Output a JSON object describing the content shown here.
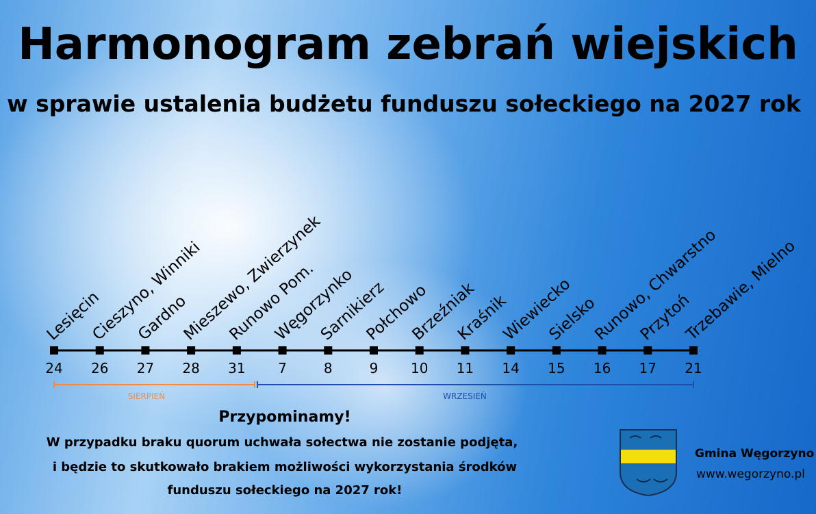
{
  "header": {
    "title": "Harmonogram zebrań wiejskich",
    "subtitle": "w sprawie ustalenia budżetu funduszu sołeckiego na 2027 rok"
  },
  "timeline": {
    "items": [
      {
        "label": "Lesięcin",
        "day": 24
      },
      {
        "label": "Cieszyno, Winniki",
        "day": 26
      },
      {
        "label": "Gardno",
        "day": 27
      },
      {
        "label": "Mieszewo, Zwierzynek",
        "day": 28
      },
      {
        "label": "Runowo Pom.",
        "day": 31
      },
      {
        "label": "Węgorzynko",
        "day": 7
      },
      {
        "label": "Sarnikierz",
        "day": 8
      },
      {
        "label": "Połchowo",
        "day": 9
      },
      {
        "label": "Brzeźniak",
        "day": 10
      },
      {
        "label": "Kraśnik",
        "day": 11
      },
      {
        "label": "Wiewiecko",
        "day": 14
      },
      {
        "label": "Sielsko",
        "day": 15
      },
      {
        "label": "Runowo, Chwarstno",
        "day": 16
      },
      {
        "label": "Przytoń",
        "day": 17
      },
      {
        "label": "Trzebawie, Mielno",
        "day": 21
      }
    ],
    "months": [
      {
        "name": "SIERPIEŃ",
        "color": "#f08a4b"
      },
      {
        "name": "WRZESIEŃ",
        "color": "#1f4fa8"
      }
    ]
  },
  "reminder": {
    "heading": "Przypominamy!",
    "lines": [
      "W przypadku braku quorum uchwała sołectwa nie zostanie podjęta,",
      "i będzie to skutkowało brakiem możliwości wykorzystania środków",
      "funduszu sołeckiego na 2027 rok!"
    ]
  },
  "footer": {
    "organization": "Gmina Węgorzyno",
    "website": "www.wegorzyno.pl"
  }
}
